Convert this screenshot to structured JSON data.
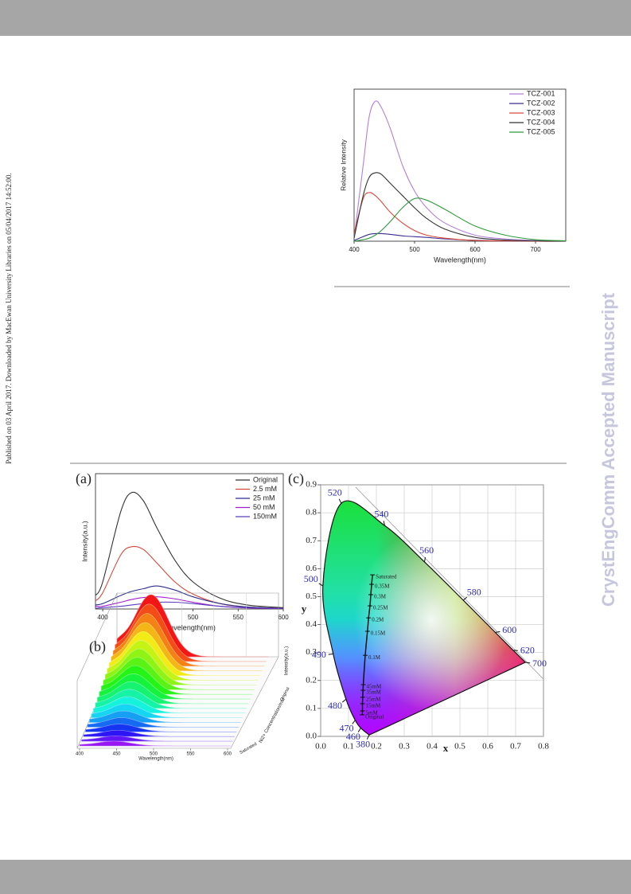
{
  "page": {
    "sidebar": "Published on 03 April 2017. Downloaded by MacEwan University Libraries on 05/04/2017 14:52:00.",
    "watermark": "CrystEngComm Accepted Manuscript"
  },
  "chart_data": [
    {
      "type": "line",
      "xlabel": "Wavelength(nm)",
      "ylabel": "Relative Intensity",
      "xlim": [
        400,
        750
      ],
      "ylim": [
        0,
        1
      ],
      "xticks": [
        400,
        500,
        600,
        700
      ],
      "x": [
        400,
        415,
        425,
        435,
        445,
        460,
        480,
        500,
        520,
        550,
        600,
        650,
        700,
        750
      ],
      "series": [
        {
          "name": "TCZ-001",
          "color": "#b57edc",
          "values": [
            0.02,
            0.5,
            0.82,
            0.92,
            0.88,
            0.74,
            0.5,
            0.33,
            0.22,
            0.12,
            0.04,
            0.015,
            0.005,
            0
          ]
        },
        {
          "name": "TCZ-002",
          "color": "#3a2d8f",
          "values": [
            0.005,
            0.03,
            0.045,
            0.05,
            0.05,
            0.045,
            0.035,
            0.03,
            0.025,
            0.015,
            0.006,
            0.002,
            0,
            0
          ]
        },
        {
          "name": "TCZ-003",
          "color": "#d9473b",
          "values": [
            0.05,
            0.28,
            0.32,
            0.3,
            0.26,
            0.19,
            0.12,
            0.07,
            0.04,
            0.02,
            0.005,
            0.002,
            0,
            0
          ]
        },
        {
          "name": "TCZ-004",
          "color": "#333333",
          "values": [
            0.02,
            0.3,
            0.42,
            0.45,
            0.44,
            0.38,
            0.3,
            0.22,
            0.15,
            0.08,
            0.025,
            0.008,
            0.002,
            0
          ]
        },
        {
          "name": "TCZ-005",
          "color": "#2e9a3a",
          "values": [
            0,
            0.01,
            0.02,
            0.04,
            0.07,
            0.13,
            0.22,
            0.28,
            0.27,
            0.21,
            0.1,
            0.04,
            0.01,
            0.003
          ]
        }
      ]
    },
    {
      "type": "line",
      "panel_label": "(a)",
      "xlabel": "Wavelength(nm)",
      "ylabel": "Intensity(a.u.)",
      "xlim": [
        392,
        600
      ],
      "ylim": [
        0,
        1
      ],
      "xticks": [
        400,
        450,
        500,
        550,
        600
      ],
      "x": [
        392,
        400,
        420,
        432,
        445,
        460,
        480,
        500,
        530,
        560,
        600
      ],
      "series": [
        {
          "name": "Original",
          "color": "#333333",
          "values": [
            0.1,
            0.2,
            0.72,
            0.86,
            0.8,
            0.6,
            0.36,
            0.2,
            0.08,
            0.03,
            0.01
          ]
        },
        {
          "name": "2.5 mM",
          "color": "#d9473b",
          "values": [
            0.06,
            0.12,
            0.4,
            0.46,
            0.44,
            0.34,
            0.2,
            0.11,
            0.04,
            0.015,
            0.005
          ]
        },
        {
          "name": "25 mM",
          "color": "#2b2f8f",
          "values": [
            0.03,
            0.04,
            0.1,
            0.13,
            0.15,
            0.17,
            0.14,
            0.09,
            0.04,
            0.015,
            0.005
          ]
        },
        {
          "name": "50 mM",
          "color": "#a021c9",
          "values": [
            0.02,
            0.02,
            0.05,
            0.07,
            0.085,
            0.09,
            0.075,
            0.05,
            0.02,
            0.008,
            0.003
          ]
        },
        {
          "name": "150mM",
          "color": "#5b3fbf",
          "values": [
            0.005,
            0.01,
            0.02,
            0.03,
            0.04,
            0.05,
            0.05,
            0.04,
            0.02,
            0.01,
            0.003
          ]
        }
      ]
    },
    {
      "type": "waterfall",
      "panel_label": "(b)",
      "xlabel": "Wavelength(nm)",
      "ylabel": "Intensity(a.u.)",
      "zlabel": "Ni2+ Concentration/mM",
      "zlabels": [
        "Original",
        "Saturated"
      ],
      "xlim": [
        400,
        600
      ],
      "xticks": [
        400,
        450,
        500,
        550,
        600
      ]
    },
    {
      "type": "chromaticity",
      "panel_label": "(c)",
      "xlabel": "x",
      "ylabel": "y",
      "xlim": [
        0,
        0.8
      ],
      "ylim": [
        0,
        0.9
      ],
      "grid": true,
      "xticks": [
        {
          "value": 0,
          "label": "0.0"
        },
        0.1,
        0.2,
        0.3,
        0.4,
        0.5,
        0.6,
        0.7,
        0.8
      ],
      "yticks": [
        {
          "value": 0,
          "label": "0.0"
        },
        0.1,
        0.2,
        0.3,
        0.4,
        0.5,
        0.6,
        0.7,
        0.8,
        0.9
      ],
      "locus": {
        "wavelengths": [
          380,
          460,
          470,
          480,
          490,
          500,
          520,
          540,
          560,
          580,
          600,
          620,
          700
        ],
        "x": [
          0.174,
          0.144,
          0.124,
          0.091,
          0.045,
          0.008,
          0.074,
          0.23,
          0.373,
          0.512,
          0.627,
          0.691,
          0.735
        ],
        "y": [
          0.005,
          0.03,
          0.058,
          0.133,
          0.295,
          0.538,
          0.834,
          0.754,
          0.624,
          0.487,
          0.372,
          0.308,
          0.265
        ]
      },
      "trajectory": {
        "labels": [
          "Saturated",
          "0.35M",
          "0.3M",
          "0.25M",
          "0.2M",
          "0.15M",
          "0.1M",
          "45mM",
          "35mM",
          "25mM",
          "15mM",
          "5mM",
          "Original"
        ],
        "x": [
          0.186,
          0.183,
          0.18,
          0.177,
          0.172,
          0.168,
          0.16,
          0.153,
          0.152,
          0.151,
          0.15,
          0.15,
          0.149
        ],
        "y": [
          0.578,
          0.544,
          0.507,
          0.467,
          0.424,
          0.376,
          0.29,
          0.185,
          0.165,
          0.14,
          0.117,
          0.091,
          0.077
        ]
      }
    }
  ]
}
